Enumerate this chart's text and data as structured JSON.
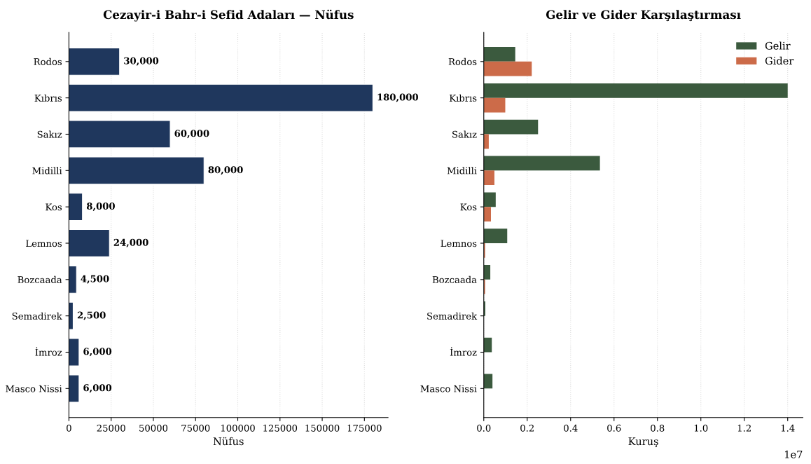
{
  "chart_data": [
    {
      "type": "bar",
      "orientation": "horizontal",
      "title": "Cezayir-i Bahr-i Sefid Adaları — Nüfus",
      "xlabel": "Nüfus",
      "categories": [
        "Rodos",
        "Kıbrıs",
        "Sakız",
        "Midilli",
        "Kos",
        "Lemnos",
        "Bozcaada",
        "Semadirek",
        "İmroz",
        "Masco Nissi"
      ],
      "values": [
        30000,
        180000,
        60000,
        80000,
        8000,
        24000,
        4500,
        2500,
        6000,
        6000
      ],
      "value_labels": [
        "30,000",
        "180,000",
        "60,000",
        "80,000",
        "8,000",
        "24,000",
        "4,500",
        "2,500",
        "6,000",
        "6,000"
      ],
      "color": "#1f375d",
      "xlim": [
        0,
        189000
      ],
      "xticks": [
        0,
        25000,
        50000,
        75000,
        100000,
        125000,
        150000,
        175000
      ],
      "grid": "x",
      "legend": false
    },
    {
      "type": "bar",
      "orientation": "horizontal",
      "title": "Gelir ve Gider Karşılaştırması",
      "xlabel": "Kuruş",
      "categories": [
        "Rodos",
        "Kıbrıs",
        "Sakız",
        "Midilli",
        "Kos",
        "Lemnos",
        "Bozcaada",
        "Semadirek",
        "İmroz",
        "Masco Nissi"
      ],
      "series": [
        {
          "name": "Gelir",
          "color": "#3b5a3e",
          "values": [
            0.145,
            1.4,
            0.25,
            0.535,
            0.055,
            0.108,
            0.03,
            0.007,
            0.037,
            0.04
          ]
        },
        {
          "name": "Gider",
          "color": "#cc6b49",
          "values": [
            0.221,
            0.099,
            0.023,
            0.049,
            0.033,
            0.006,
            0.006,
            null,
            null,
            null
          ]
        }
      ],
      "xlim": [
        0,
        1.47
      ],
      "xticks": [
        {
          "value": 0,
          "label": "0.0"
        },
        0.2,
        0.4,
        0.6,
        0.8,
        {
          "value": 1,
          "label": "1.0"
        },
        1.2,
        1.4
      ],
      "annotations": [
        "1e7"
      ],
      "grid": "x",
      "legend": "top right"
    }
  ]
}
